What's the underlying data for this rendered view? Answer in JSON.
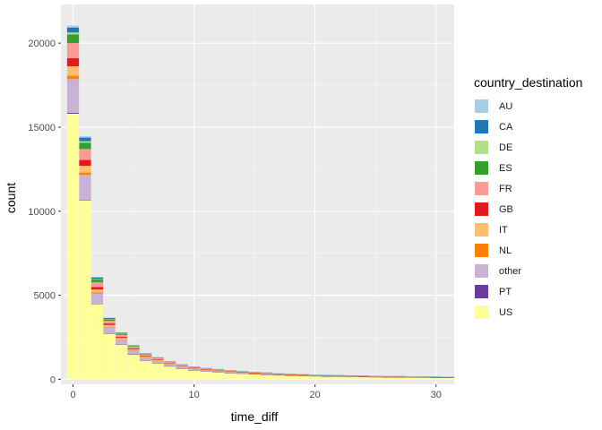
{
  "chart_data": {
    "type": "bar",
    "stacked": true,
    "xlabel": "time_diff",
    "ylabel": "count",
    "xlim": [
      -1,
      31.5
    ],
    "ylim": [
      -300,
      22300
    ],
    "x_ticks": [
      0,
      10,
      20,
      30
    ],
    "y_ticks": [
      0,
      5000,
      10000,
      15000,
      20000
    ],
    "grid": true,
    "legend_title": "country_destination",
    "legend_position": "right",
    "x": [
      0,
      1,
      2,
      3,
      4,
      5,
      6,
      7,
      8,
      9,
      10,
      11,
      12,
      13,
      14,
      15,
      16,
      17,
      18,
      19,
      20,
      21,
      22,
      23,
      24,
      25,
      26,
      27,
      28,
      29,
      30,
      31
    ],
    "series": [
      {
        "name": "US",
        "color": "#FFFF99",
        "values": [
          15800,
          10650,
          4480,
          2720,
          2070,
          1480,
          1130,
          960,
          780,
          640,
          540,
          480,
          430,
          390,
          350,
          310,
          280,
          250,
          230,
          210,
          195,
          180,
          170,
          160,
          150,
          140,
          130,
          125,
          118,
          112,
          105,
          100
        ]
      },
      {
        "name": "PT",
        "color": "#6A3D9A",
        "values": [
          60,
          40,
          20,
          12,
          10,
          8,
          6,
          5,
          4,
          4,
          3,
          3,
          3,
          2,
          2,
          2,
          2,
          2,
          2,
          2,
          1,
          1,
          1,
          1,
          1,
          1,
          1,
          1,
          1,
          1,
          1,
          1
        ]
      },
      {
        "name": "other",
        "color": "#CAB2D6",
        "values": [
          2000,
          1470,
          610,
          360,
          270,
          210,
          170,
          140,
          120,
          100,
          85,
          75,
          68,
          62,
          56,
          50,
          46,
          42,
          38,
          35,
          33,
          31,
          29,
          27,
          26,
          25,
          24,
          23,
          22,
          21,
          20,
          19
        ]
      },
      {
        "name": "NL",
        "color": "#FF7F00",
        "values": [
          200,
          140,
          60,
          35,
          27,
          20,
          16,
          13,
          11,
          10,
          9,
          8,
          7,
          6,
          6,
          5,
          5,
          5,
          4,
          4,
          4,
          4,
          3,
          3,
          3,
          3,
          3,
          3,
          3,
          3,
          3,
          3
        ]
      },
      {
        "name": "IT",
        "color": "#FDBF6F",
        "values": [
          560,
          400,
          170,
          100,
          75,
          58,
          46,
          38,
          32,
          27,
          24,
          21,
          19,
          17,
          16,
          14,
          13,
          12,
          11,
          10,
          10,
          9,
          9,
          8,
          8,
          7,
          7,
          7,
          6,
          6,
          6,
          6
        ]
      },
      {
        "name": "GB",
        "color": "#E31A1C",
        "values": [
          480,
          350,
          150,
          90,
          68,
          52,
          41,
          34,
          29,
          25,
          22,
          19,
          17,
          16,
          14,
          13,
          12,
          11,
          10,
          9,
          9,
          8,
          8,
          7,
          7,
          7,
          6,
          6,
          6,
          6,
          5,
          5
        ]
      },
      {
        "name": "FR",
        "color": "#FB9A99",
        "values": [
          900,
          650,
          280,
          165,
          125,
          95,
          75,
          63,
          53,
          45,
          40,
          35,
          32,
          29,
          26,
          24,
          22,
          20,
          18,
          17,
          16,
          15,
          14,
          13,
          12,
          12,
          11,
          11,
          10,
          10,
          10,
          9
        ]
      },
      {
        "name": "ES",
        "color": "#33A02C",
        "values": [
          520,
          380,
          160,
          95,
          72,
          55,
          44,
          36,
          30,
          26,
          23,
          20,
          18,
          16,
          15,
          14,
          13,
          12,
          11,
          10,
          9,
          9,
          8,
          8,
          7,
          7,
          7,
          6,
          6,
          6,
          6,
          6
        ]
      },
      {
        "name": "DE",
        "color": "#B2DF8A",
        "values": [
          110,
          80,
          35,
          20,
          16,
          12,
          10,
          8,
          7,
          6,
          5,
          5,
          4,
          4,
          4,
          3,
          3,
          3,
          3,
          3,
          2,
          2,
          2,
          2,
          2,
          2,
          2,
          2,
          2,
          2,
          2,
          2
        ]
      },
      {
        "name": "CA",
        "color": "#1F78B4",
        "values": [
          300,
          220,
          95,
          55,
          42,
          32,
          26,
          21,
          18,
          15,
          13,
          12,
          11,
          10,
          9,
          8,
          8,
          7,
          7,
          6,
          6,
          6,
          5,
          5,
          5,
          5,
          4,
          4,
          4,
          4,
          4,
          4
        ]
      },
      {
        "name": "AU",
        "color": "#A6CEE3",
        "values": [
          110,
          80,
          35,
          20,
          16,
          12,
          10,
          8,
          7,
          6,
          5,
          5,
          4,
          4,
          4,
          3,
          3,
          3,
          3,
          3,
          2,
          2,
          2,
          2,
          2,
          2,
          2,
          2,
          2,
          2,
          2,
          2
        ]
      }
    ]
  },
  "legend": {
    "title": "country_destination",
    "items": [
      {
        "label": "AU",
        "color": "#A6CEE3"
      },
      {
        "label": "CA",
        "color": "#1F78B4"
      },
      {
        "label": "DE",
        "color": "#B2DF8A"
      },
      {
        "label": "ES",
        "color": "#33A02C"
      },
      {
        "label": "FR",
        "color": "#FB9A99"
      },
      {
        "label": "GB",
        "color": "#E31A1C"
      },
      {
        "label": "IT",
        "color": "#FDBF6F"
      },
      {
        "label": "NL",
        "color": "#FF7F00"
      },
      {
        "label": "other",
        "color": "#CAB2D6"
      },
      {
        "label": "PT",
        "color": "#6A3D9A"
      },
      {
        "label": "US",
        "color": "#FFFF99"
      }
    ]
  },
  "colors": {
    "panel_background": "#EBEBEB",
    "grid_major": "#FFFFFF",
    "axis_text": "#4D4D4D"
  }
}
